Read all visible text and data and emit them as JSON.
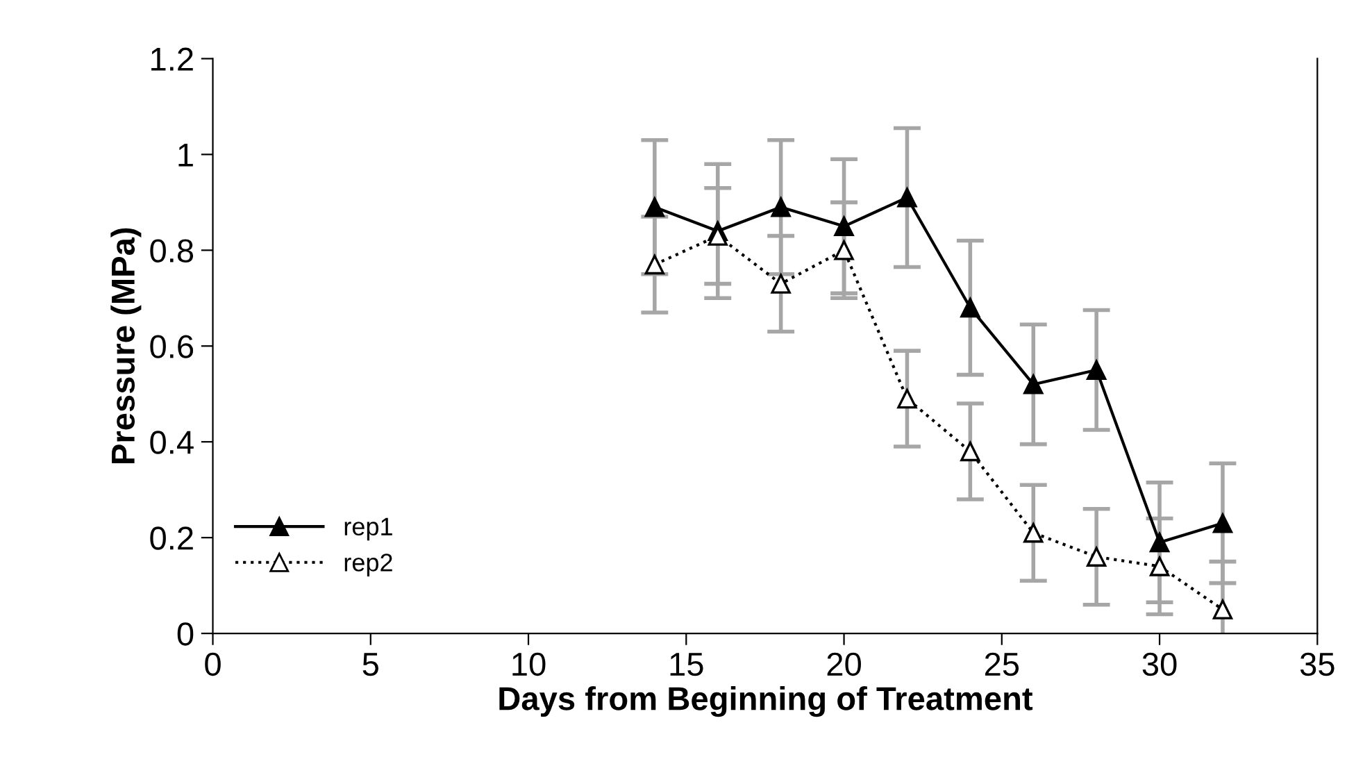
{
  "chart_data": {
    "type": "line",
    "xlabel": "Days from Beginning of Treatment",
    "ylabel": "Pressure (MPa)",
    "x": [
      14,
      16,
      18,
      20,
      22,
      24,
      26,
      28,
      30,
      32
    ],
    "series": [
      {
        "name": "rep1",
        "color": "#000000",
        "marker": "triangle",
        "line_style": "solid",
        "values": [
          0.89,
          0.84,
          0.89,
          0.85,
          0.91,
          0.68,
          0.52,
          0.55,
          0.19,
          0.23
        ],
        "errors": [
          0.14,
          0.14,
          0.14,
          0.14,
          0.145,
          0.14,
          0.125,
          0.125,
          0.125,
          0.125
        ]
      },
      {
        "name": "rep2",
        "color": "#000000",
        "marker": "triangle",
        "line_style": "dotted",
        "values": [
          0.77,
          0.83,
          0.73,
          0.8,
          0.49,
          0.38,
          0.21,
          0.16,
          0.14,
          0.05
        ],
        "errors": [
          0.1,
          0.1,
          0.1,
          0.1,
          0.1,
          0.1,
          0.1,
          0.1,
          0.1,
          0.1
        ]
      }
    ],
    "xlim": [
      0,
      35
    ],
    "xticks": [
      0,
      5,
      10,
      15,
      20,
      25,
      30,
      35
    ],
    "ylim": [
      0,
      1.2
    ],
    "yticks": [
      0,
      0.2,
      0.4,
      0.6,
      0.8,
      1,
      1.2
    ],
    "grid": false,
    "legend": "bottom left"
  }
}
